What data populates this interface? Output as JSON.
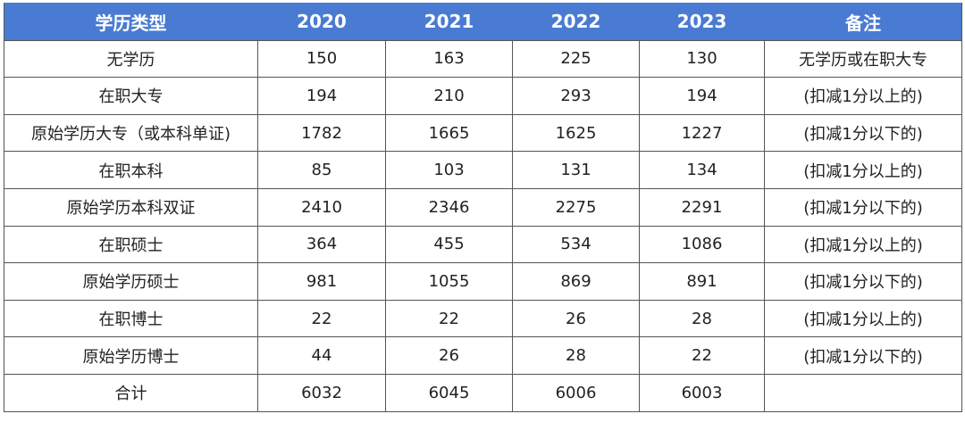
{
  "table": {
    "header": [
      "学历类型",
      "2020",
      "2021",
      "2022",
      "2023",
      "备注"
    ],
    "rows": [
      [
        "无学历",
        150,
        163,
        225,
        130,
        "无学历或在职大专"
      ],
      [
        "在职大专",
        194,
        210,
        293,
        194,
        "(扣减1分以上的)"
      ],
      [
        "原始学历大专（或本科单证)",
        1782,
        1665,
        1625,
        1227,
        "(扣减1分以下的)"
      ],
      [
        "在职本科",
        85,
        103,
        131,
        134,
        "(扣减1分以上的)"
      ],
      [
        "原始学历本科双证",
        2410,
        2346,
        2275,
        2291,
        "(扣减1分以下的)"
      ],
      [
        "在职硕士",
        364,
        455,
        534,
        1086,
        "(扣减1分以上的)"
      ],
      [
        "原始学历硕士",
        981,
        1055,
        869,
        891,
        "(扣减1分以下的)"
      ],
      [
        "在职博士",
        22,
        22,
        26,
        28,
        "(扣减1分以上的)"
      ],
      [
        "原始学历博士",
        44,
        26,
        28,
        22,
        "(扣减1分以下的)"
      ],
      [
        "合计",
        6032,
        6045,
        6006,
        6003
      ]
    ]
  }
}
